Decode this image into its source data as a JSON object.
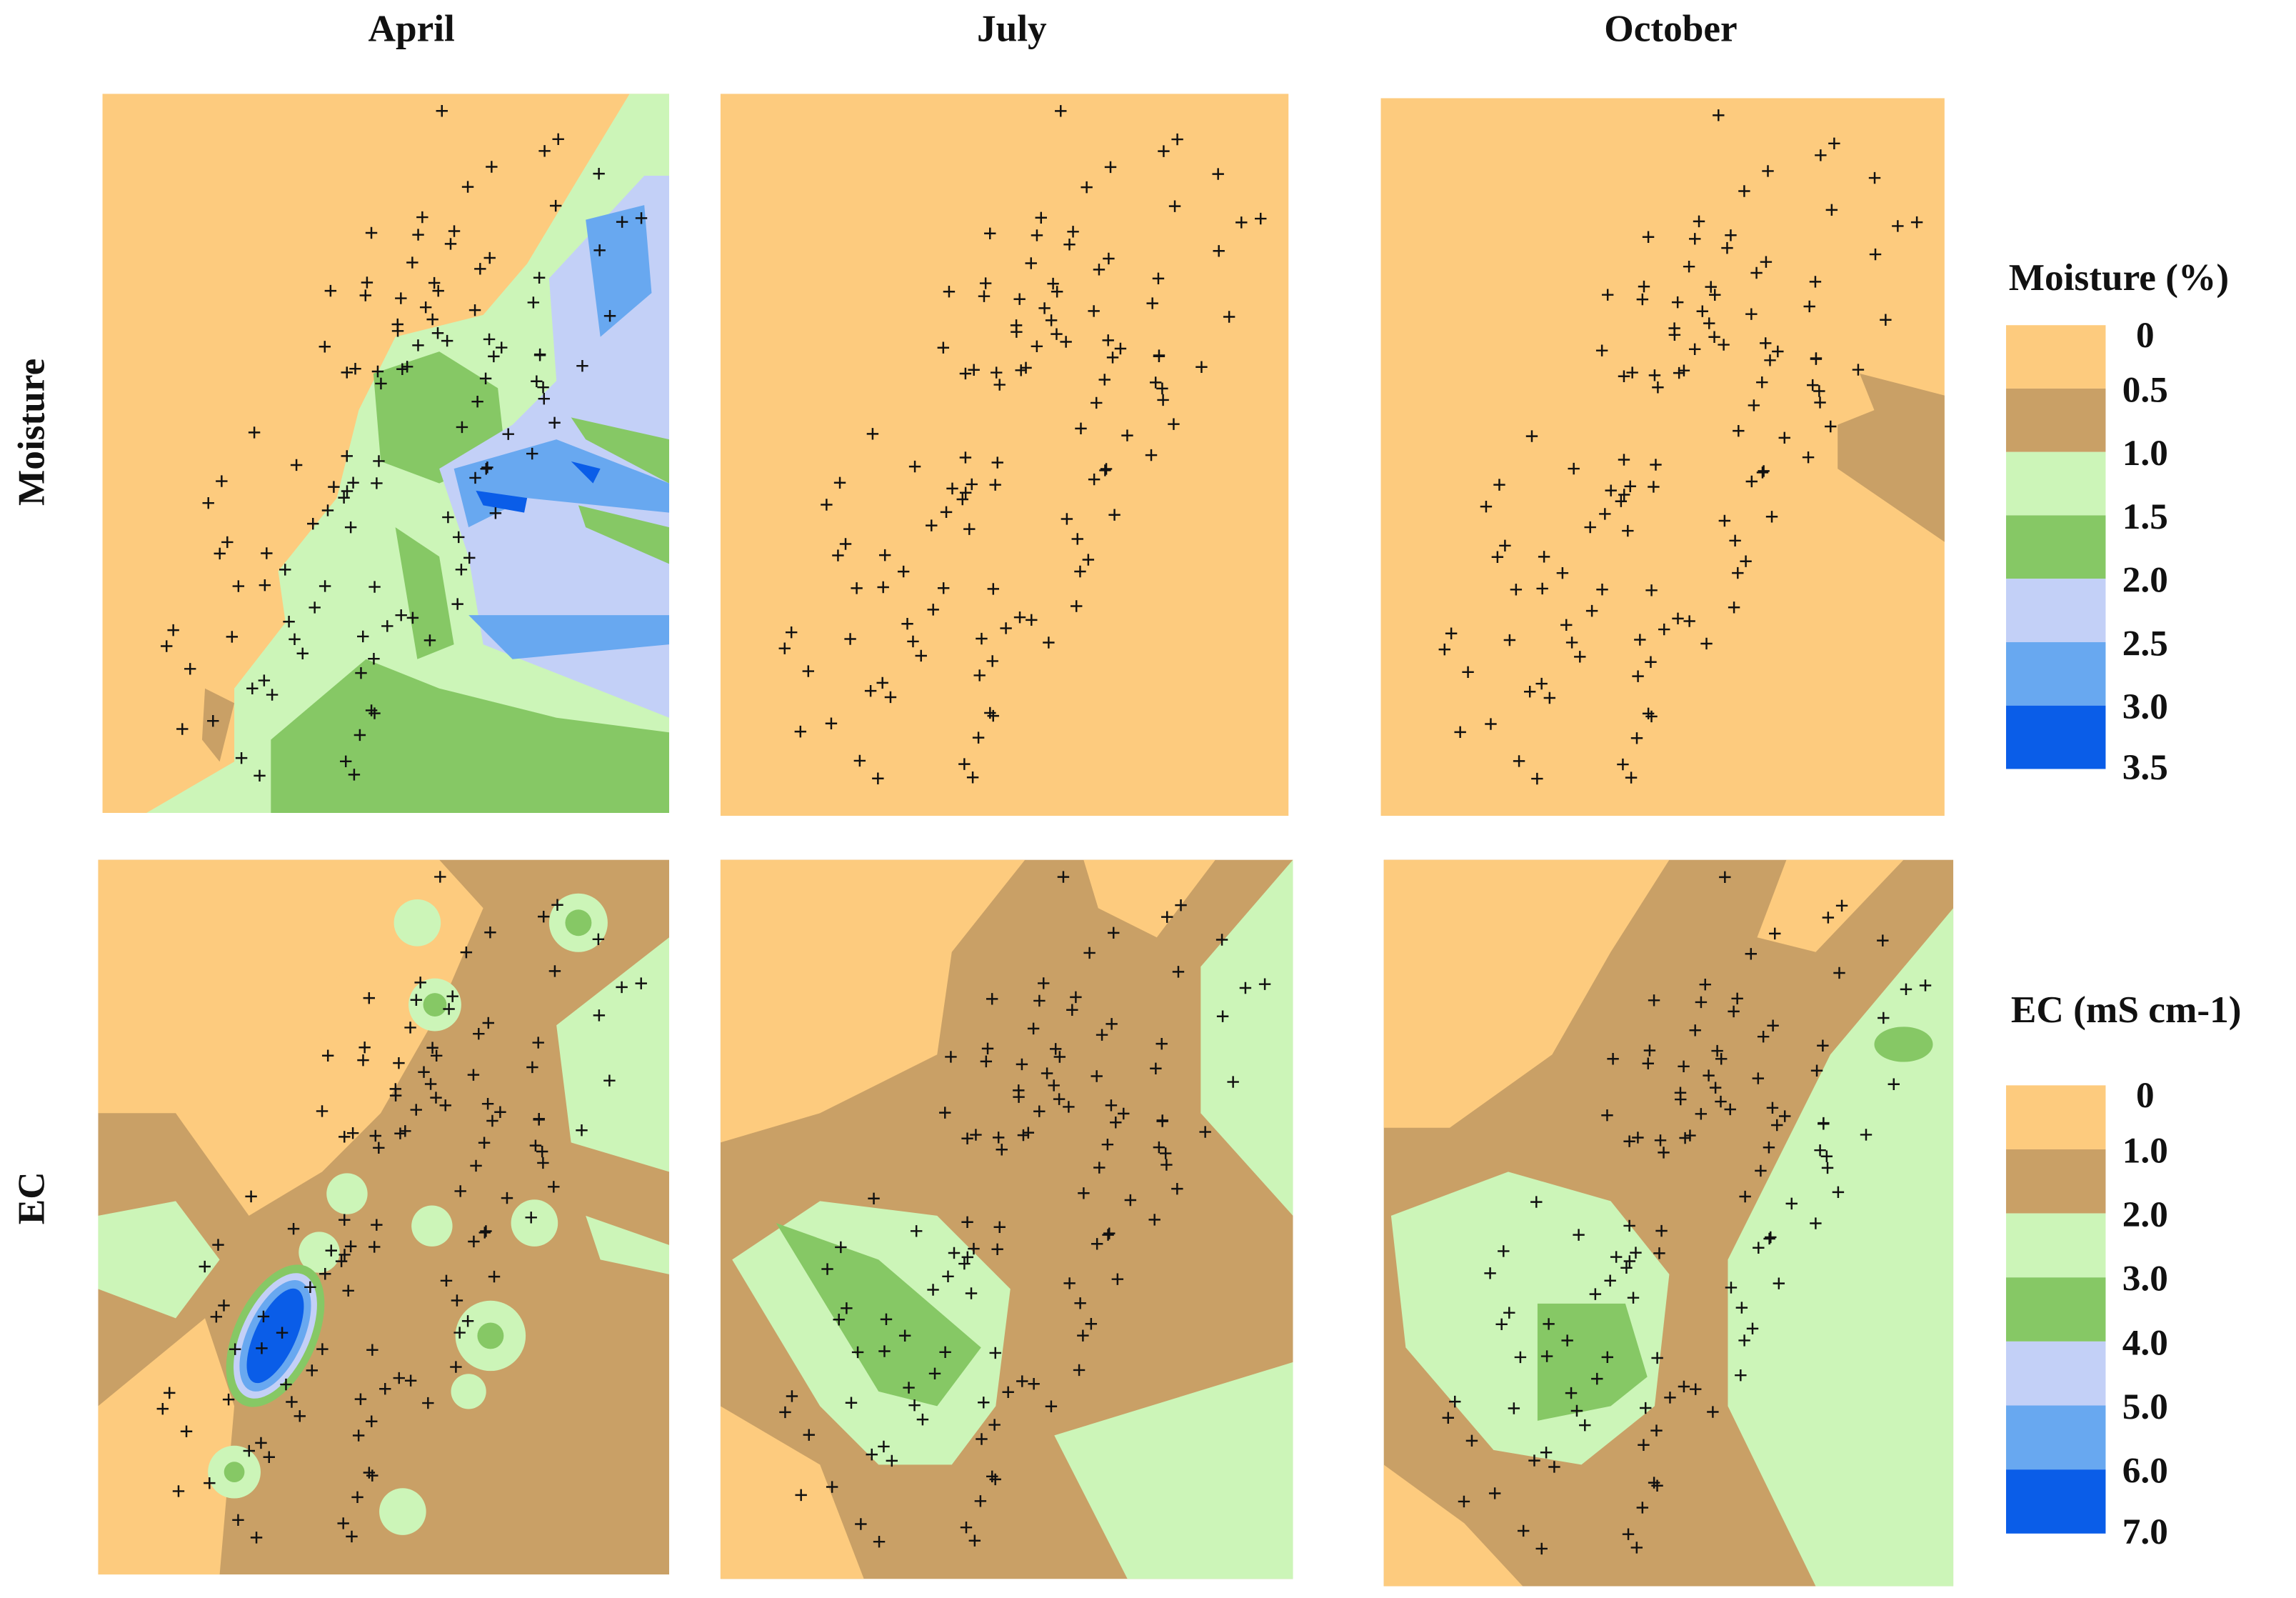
{
  "columns": [
    "April",
    "July",
    "October"
  ],
  "rows": [
    "Moisture",
    "EC"
  ],
  "legends": [
    {
      "title": "Moisture (%)",
      "labels": [
        "0",
        "0.5",
        "1.0",
        "1.5",
        "2.0",
        "2.5",
        "3.0",
        "3.5"
      ],
      "colors": [
        "#fdcb7e",
        "#c9a066",
        "#ccf5b8",
        "#86c865",
        "#c3d0f7",
        "#68a8f0",
        "#0a5de8"
      ]
    },
    {
      "title": "EC (mS cm-1)",
      "labels": [
        "0",
        "1.0",
        "2.0",
        "3.0",
        "4.0",
        "5.0",
        "6.0",
        "7.0"
      ],
      "colors": [
        "#fdcb7e",
        "#c9a066",
        "#ccf5b8",
        "#86c865",
        "#c3d0f7",
        "#68a8f0",
        "#0a5de8"
      ]
    }
  ]
}
